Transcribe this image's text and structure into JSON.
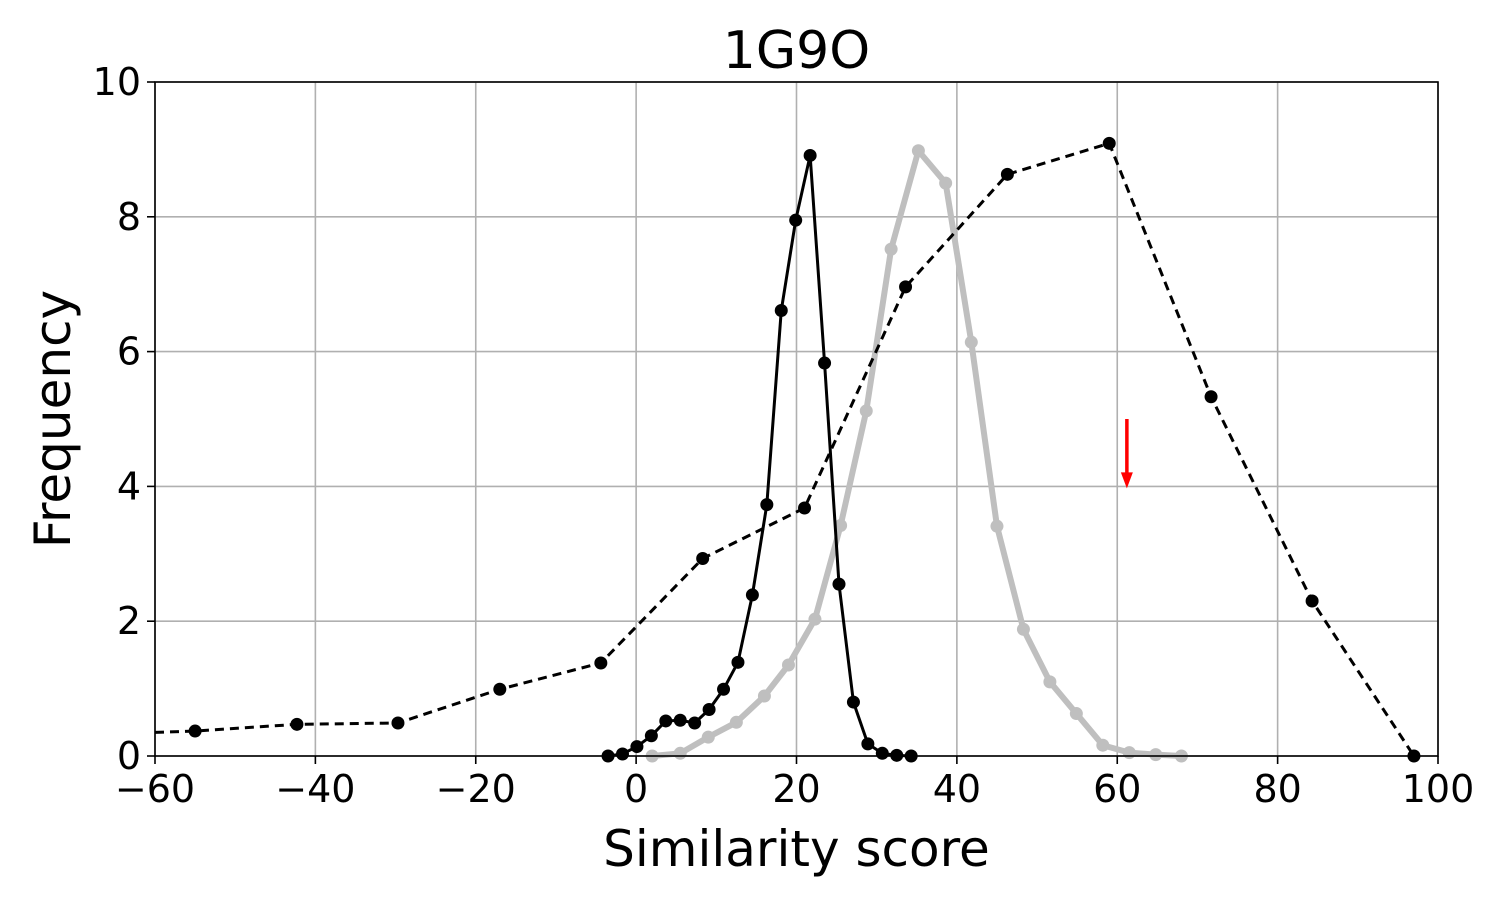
{
  "chart_data": {
    "type": "line",
    "title": "1G9O",
    "xlabel": "Similarity score",
    "ylabel": "Frequency",
    "xlim": [
      -60,
      100
    ],
    "ylim": [
      0,
      10
    ],
    "xticks": [
      -60,
      -40,
      -20,
      0,
      20,
      40,
      60,
      80,
      100
    ],
    "xtick_labels": [
      "−60",
      "−40",
      "−20",
      "0",
      "20",
      "40",
      "60",
      "80",
      "100"
    ],
    "yticks": [
      0,
      2,
      4,
      6,
      8,
      10
    ],
    "ytick_labels": [
      "0",
      "2",
      "4",
      "6",
      "8",
      "10"
    ],
    "grid": true,
    "legend": false,
    "series": [
      {
        "style": "dashed",
        "color": "#000000",
        "marker": "circle",
        "points": [
          [
            -60,
            0.35
          ],
          [
            -55,
            0.37
          ],
          [
            -42.3,
            0.47
          ],
          [
            -29.7,
            0.49
          ],
          [
            -17.0,
            0.99
          ],
          [
            -4.4,
            1.38
          ],
          [
            8.3,
            2.93
          ],
          [
            21.0,
            3.68
          ],
          [
            33.6,
            6.96
          ],
          [
            46.3,
            8.63
          ],
          [
            59.0,
            9.09
          ],
          [
            71.7,
            5.33
          ],
          [
            84.3,
            2.3
          ],
          [
            97.0,
            0.0
          ]
        ]
      },
      {
        "style": "solid",
        "color": "#000000",
        "marker": "circle",
        "points": [
          [
            -3.5,
            0.0
          ],
          [
            -1.7,
            0.03
          ],
          [
            0.1,
            0.14
          ],
          [
            1.9,
            0.3
          ],
          [
            3.7,
            0.52
          ],
          [
            5.5,
            0.53
          ],
          [
            7.3,
            0.49
          ],
          [
            9.1,
            0.69
          ],
          [
            10.9,
            0.99
          ],
          [
            12.7,
            1.39
          ],
          [
            14.5,
            2.39
          ],
          [
            16.3,
            3.73
          ],
          [
            18.1,
            6.61
          ],
          [
            19.9,
            7.95
          ],
          [
            21.7,
            8.91
          ],
          [
            23.5,
            5.83
          ],
          [
            25.3,
            2.55
          ],
          [
            27.1,
            0.8
          ],
          [
            28.9,
            0.18
          ],
          [
            30.7,
            0.04
          ],
          [
            32.5,
            0.01
          ],
          [
            34.3,
            0.0
          ]
        ]
      },
      {
        "style": "solid",
        "color": "#bfbfbf",
        "marker": "circle",
        "points": [
          [
            2.0,
            0.0
          ],
          [
            5.5,
            0.04
          ],
          [
            9.0,
            0.28
          ],
          [
            12.5,
            0.5
          ],
          [
            16.0,
            0.89
          ],
          [
            19.0,
            1.35
          ],
          [
            22.3,
            2.03
          ],
          [
            25.5,
            3.42
          ],
          [
            28.7,
            5.12
          ],
          [
            31.8,
            7.52
          ],
          [
            35.2,
            8.98
          ],
          [
            38.6,
            8.5
          ],
          [
            41.8,
            6.14
          ],
          [
            45.0,
            3.41
          ],
          [
            48.3,
            1.88
          ],
          [
            51.6,
            1.1
          ],
          [
            54.9,
            0.63
          ],
          [
            58.2,
            0.16
          ],
          [
            61.5,
            0.05
          ],
          [
            64.8,
            0.02
          ],
          [
            68.0,
            0.0
          ]
        ]
      }
    ],
    "annotations": [
      {
        "type": "arrow",
        "color": "#ff0000",
        "x": 61.2,
        "y_from": 5.0,
        "y_to": 4.0
      }
    ]
  }
}
